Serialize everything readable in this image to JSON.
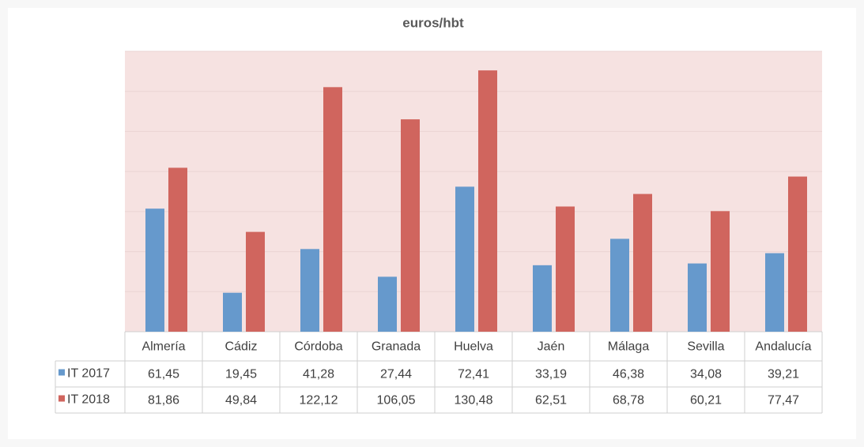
{
  "chart_data": {
    "type": "bar",
    "title": "euros/hbt",
    "categories": [
      "Almería",
      "Cádiz",
      "Córdoba",
      "Granada",
      "Huelva",
      "Jaén",
      "Málaga",
      "Sevilla",
      "Andalucía"
    ],
    "series": [
      {
        "name": "IT 2017",
        "color": "#6699cc",
        "values": [
          61.45,
          19.45,
          41.28,
          27.44,
          72.41,
          33.19,
          46.38,
          34.08,
          39.21
        ],
        "value_labels": [
          "61,45",
          "19,45",
          "41,28",
          "27,44",
          "72,41",
          "33,19",
          "46,38",
          "34,08",
          "39,21"
        ]
      },
      {
        "name": "IT 2018",
        "color": "#d0655e",
        "values": [
          81.86,
          49.84,
          122.12,
          106.05,
          130.48,
          62.51,
          68.78,
          60.21,
          77.47
        ],
        "value_labels": [
          "81,86",
          "49,84",
          "122,12",
          "106,05",
          "130,48",
          "62,51",
          "68,78",
          "60,21",
          "77,47"
        ]
      }
    ],
    "ylim": [
      0,
      140
    ],
    "yticks": [
      0,
      20,
      40,
      60,
      80,
      100,
      120,
      140
    ],
    "grid": true
  }
}
